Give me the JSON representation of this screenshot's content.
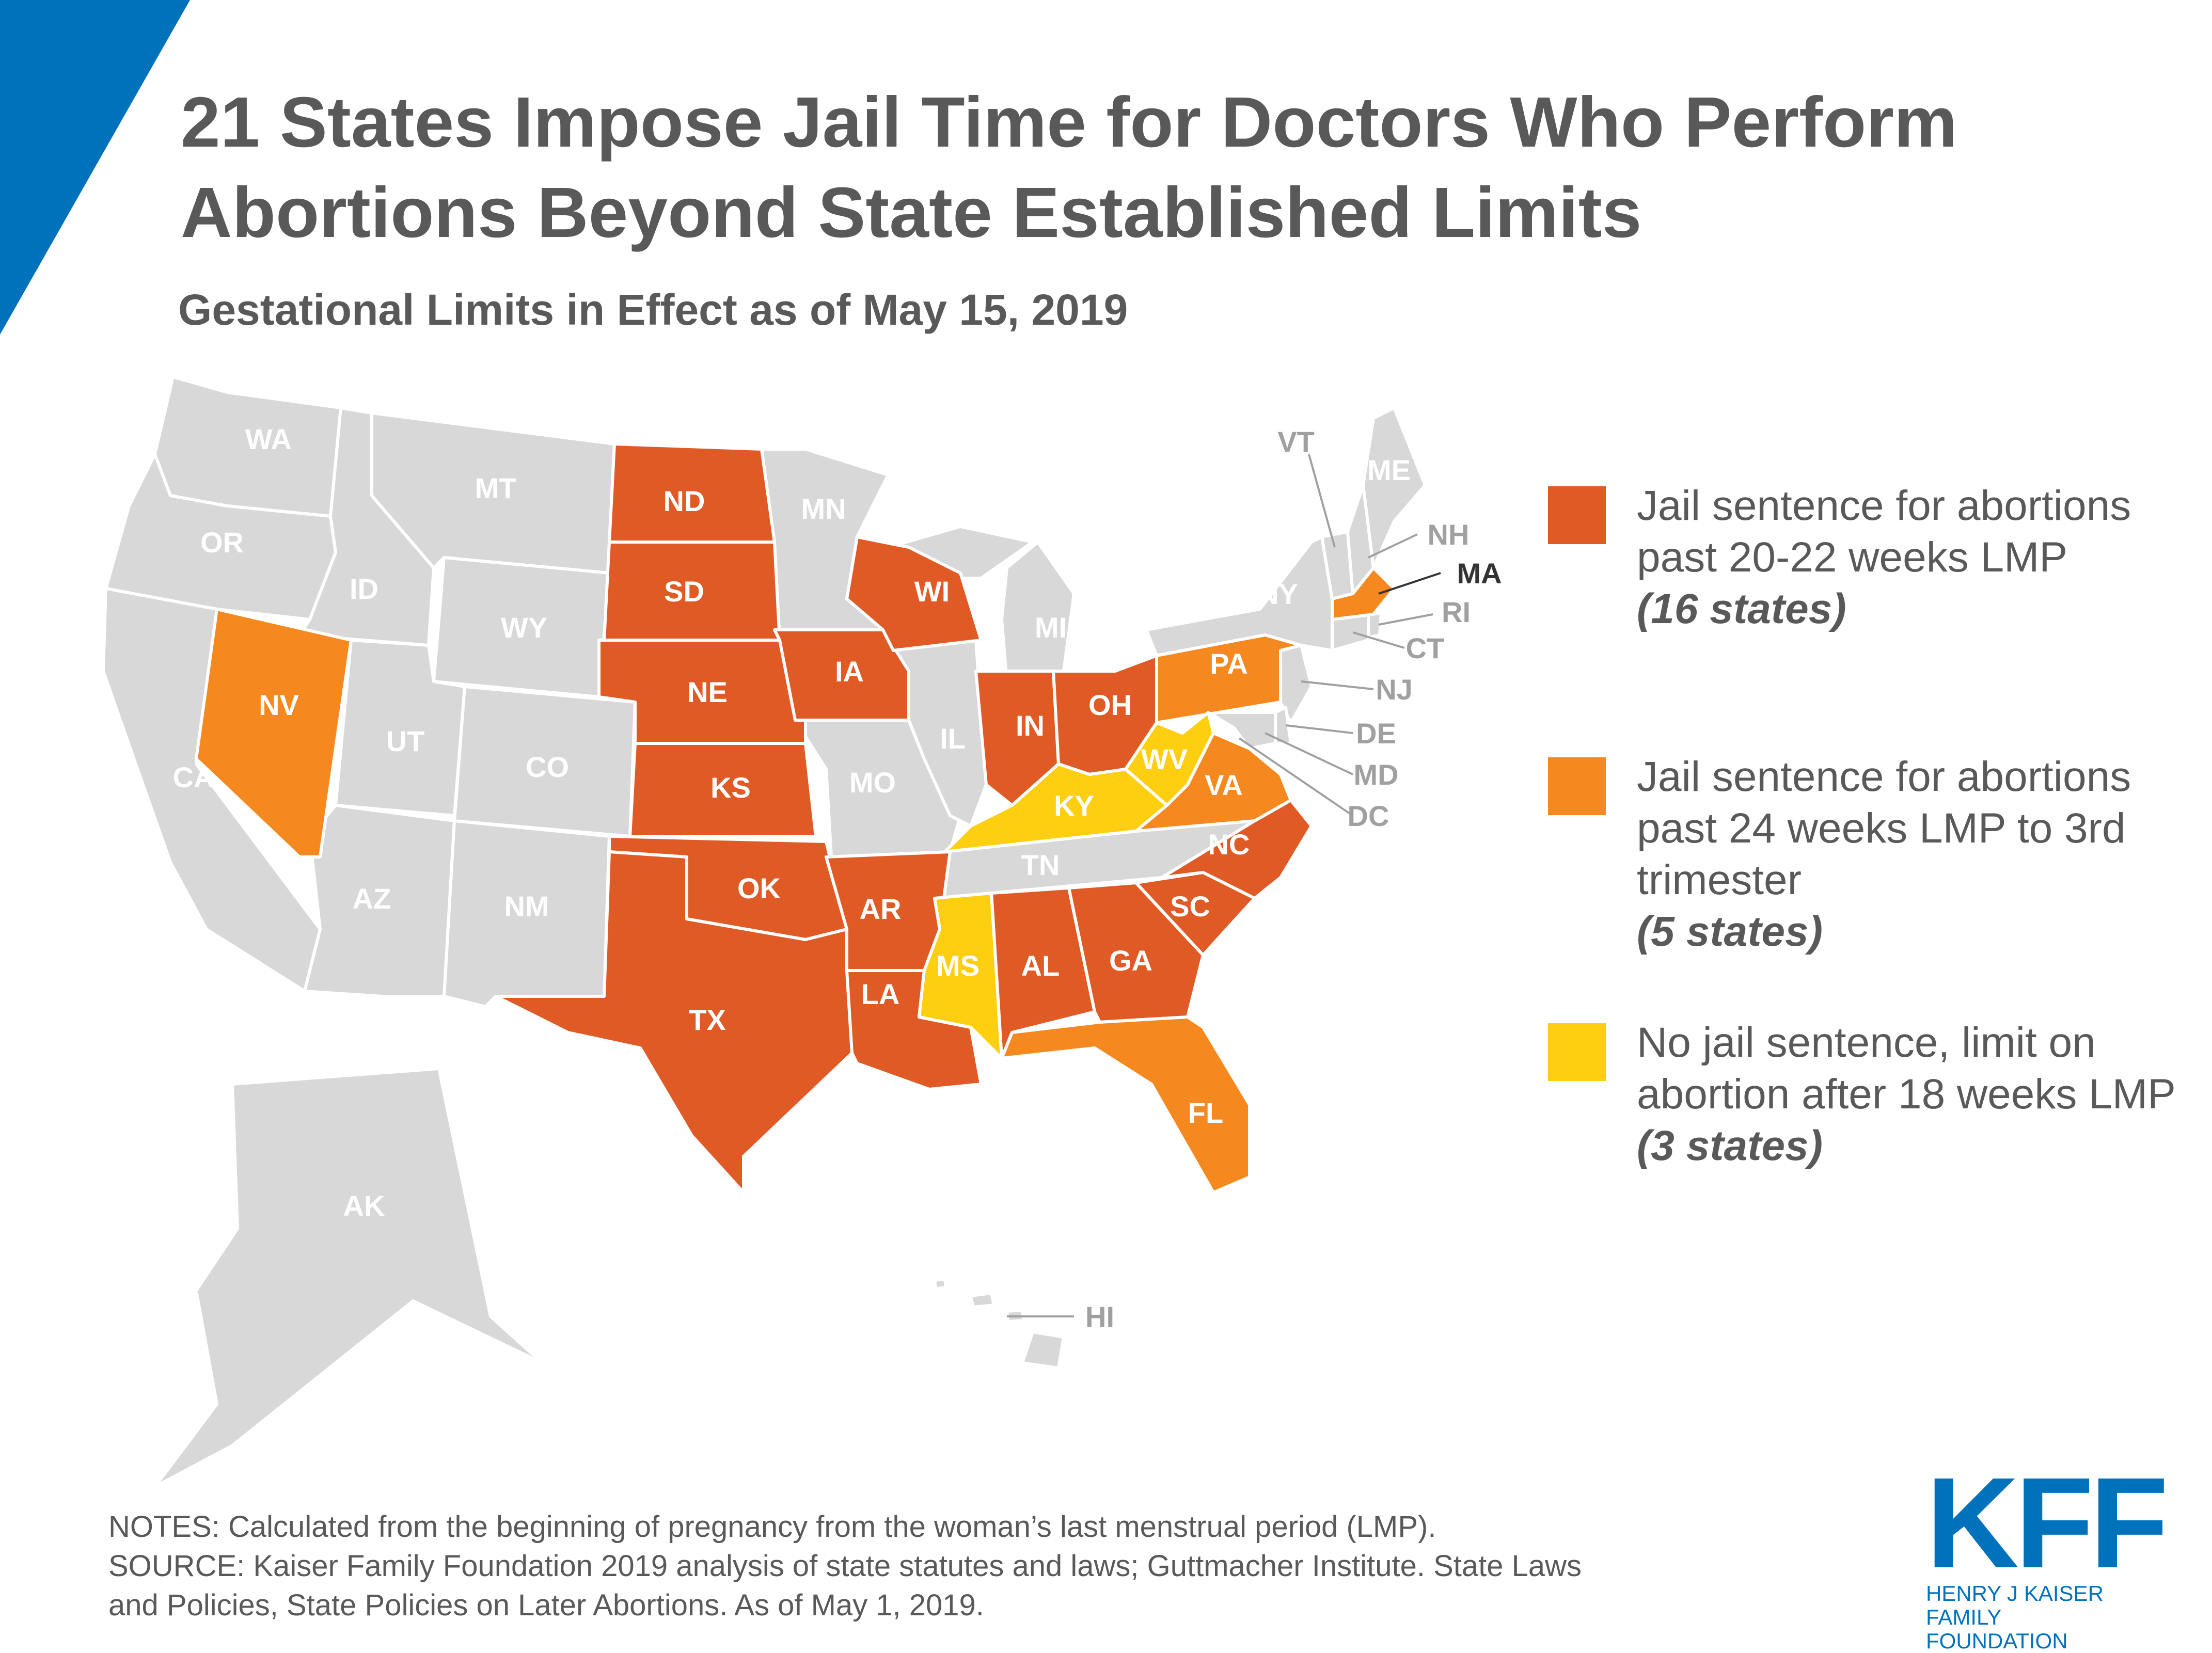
{
  "title": "21 States Impose Jail Time for Doctors Who Perform Abortions Beyond State Established Limits",
  "subtitle": "Gestational Limits in Effect as of May 15, 2019",
  "colors": {
    "jail_20_22": "#e05a26",
    "jail_24_third": "#f5891f",
    "no_jail_18": "#fdcf10",
    "no_data": "#d8d8d8",
    "accent_blue": "#0072bc",
    "text": "#595959"
  },
  "legend": [
    {
      "category": "jail_20_22",
      "label": "Jail sentence for abortions past 20-22 weeks LMP",
      "count": "(16 states)"
    },
    {
      "category": "jail_24_third",
      "label": "Jail sentence for abortions past 24 weeks LMP to 3rd trimester",
      "count": "(5 states)"
    },
    {
      "category": "no_jail_18",
      "label": "No jail sentence, limit on abortion after 18 weeks LMP",
      "count": "(3 states)"
    }
  ],
  "states": [
    {
      "abbr": "WA",
      "category": "none"
    },
    {
      "abbr": "OR",
      "category": "none"
    },
    {
      "abbr": "CA",
      "category": "none"
    },
    {
      "abbr": "NV",
      "category": "jail_24_third"
    },
    {
      "abbr": "ID",
      "category": "none"
    },
    {
      "abbr": "MT",
      "category": "none"
    },
    {
      "abbr": "WY",
      "category": "none"
    },
    {
      "abbr": "UT",
      "category": "none"
    },
    {
      "abbr": "CO",
      "category": "none"
    },
    {
      "abbr": "AZ",
      "category": "none"
    },
    {
      "abbr": "NM",
      "category": "none"
    },
    {
      "abbr": "ND",
      "category": "jail_20_22"
    },
    {
      "abbr": "SD",
      "category": "jail_20_22"
    },
    {
      "abbr": "NE",
      "category": "jail_20_22"
    },
    {
      "abbr": "KS",
      "category": "jail_20_22"
    },
    {
      "abbr": "OK",
      "category": "jail_20_22"
    },
    {
      "abbr": "TX",
      "category": "jail_20_22"
    },
    {
      "abbr": "MN",
      "category": "none"
    },
    {
      "abbr": "IA",
      "category": "jail_20_22"
    },
    {
      "abbr": "MO",
      "category": "none"
    },
    {
      "abbr": "AR",
      "category": "jail_20_22"
    },
    {
      "abbr": "LA",
      "category": "jail_20_22"
    },
    {
      "abbr": "WI",
      "category": "jail_20_22"
    },
    {
      "abbr": "IL",
      "category": "none"
    },
    {
      "abbr": "MI",
      "category": "none"
    },
    {
      "abbr": "IN",
      "category": "jail_20_22"
    },
    {
      "abbr": "OH",
      "category": "jail_20_22"
    },
    {
      "abbr": "KY",
      "category": "no_jail_18"
    },
    {
      "abbr": "TN",
      "category": "none"
    },
    {
      "abbr": "MS",
      "category": "no_jail_18"
    },
    {
      "abbr": "AL",
      "category": "jail_20_22"
    },
    {
      "abbr": "GA",
      "category": "jail_20_22"
    },
    {
      "abbr": "FL",
      "category": "jail_24_third"
    },
    {
      "abbr": "SC",
      "category": "jail_20_22"
    },
    {
      "abbr": "NC",
      "category": "jail_20_22"
    },
    {
      "abbr": "VA",
      "category": "jail_24_third"
    },
    {
      "abbr": "WV",
      "category": "no_jail_18"
    },
    {
      "abbr": "PA",
      "category": "jail_24_third"
    },
    {
      "abbr": "NY",
      "category": "none"
    },
    {
      "abbr": "VT",
      "category": "none"
    },
    {
      "abbr": "NH",
      "category": "none"
    },
    {
      "abbr": "ME",
      "category": "none"
    },
    {
      "abbr": "MA",
      "category": "jail_24_third"
    },
    {
      "abbr": "RI",
      "category": "none"
    },
    {
      "abbr": "CT",
      "category": "none"
    },
    {
      "abbr": "NJ",
      "category": "none"
    },
    {
      "abbr": "DE",
      "category": "none"
    },
    {
      "abbr": "MD",
      "category": "none"
    },
    {
      "abbr": "DC",
      "category": "none"
    },
    {
      "abbr": "AK",
      "category": "none"
    },
    {
      "abbr": "HI",
      "category": "none"
    }
  ],
  "notes": [
    "NOTES: Calculated from the beginning of pregnancy from the woman’s last menstrual period (LMP).",
    "SOURCE: Kaiser Family Foundation 2019 analysis of state statutes and laws; Guttmacher Institute. State Laws",
    "and Policies, State Policies on Later Abortions. As of May 1, 2019."
  ],
  "logo": {
    "mark": "KFF",
    "line1": "HENRY J KAISER",
    "line2": "FAMILY FOUNDATION"
  }
}
